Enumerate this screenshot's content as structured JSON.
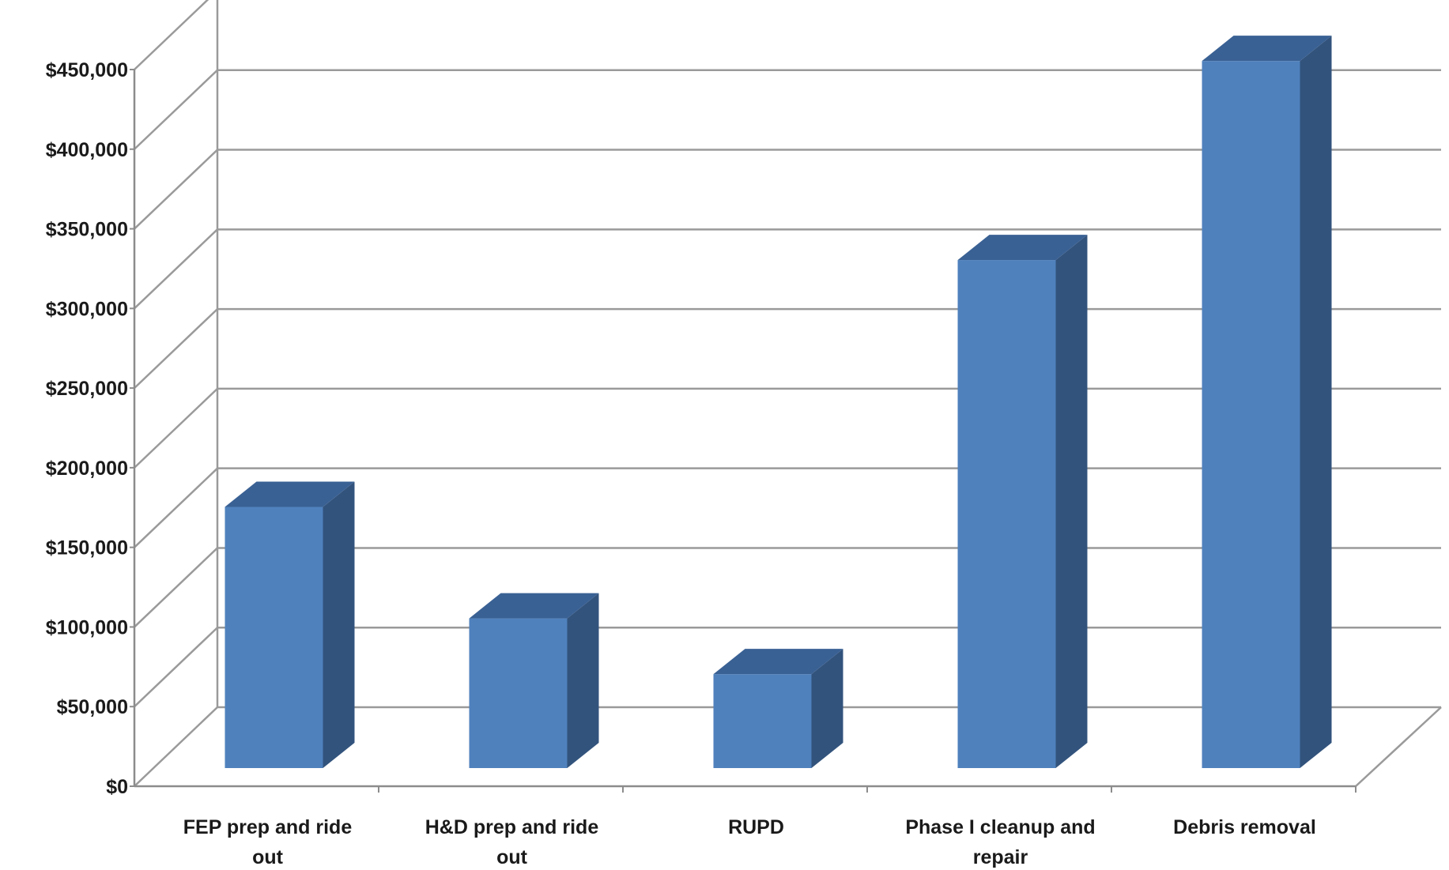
{
  "chart_data": {
    "type": "bar",
    "categories": [
      [
        "FEP prep and ride",
        "out"
      ],
      [
        "H&D  prep and ride",
        "out"
      ],
      [
        "RUPD"
      ],
      [
        "Phase I cleanup and",
        "repair"
      ],
      [
        "Debris removal"
      ]
    ],
    "values": [
      160000,
      90000,
      55000,
      315000,
      440000
    ],
    "ylim": [
      0,
      450000
    ],
    "yticks": [
      "$0",
      "$50,000",
      "$100,000",
      "$150,000",
      "$200,000",
      "$250,000",
      "$300,000",
      "$350,000",
      "$400,000",
      "$450,000"
    ],
    "title": "",
    "xlabel": "",
    "ylabel": "",
    "grid": true,
    "legend": "none",
    "colors": {
      "bar_front": "#4F81BD",
      "bar_side": "#32537C",
      "bar_top": "#3A6194",
      "grid": "#9a9a9a",
      "axis": "#8c8c8c"
    }
  }
}
